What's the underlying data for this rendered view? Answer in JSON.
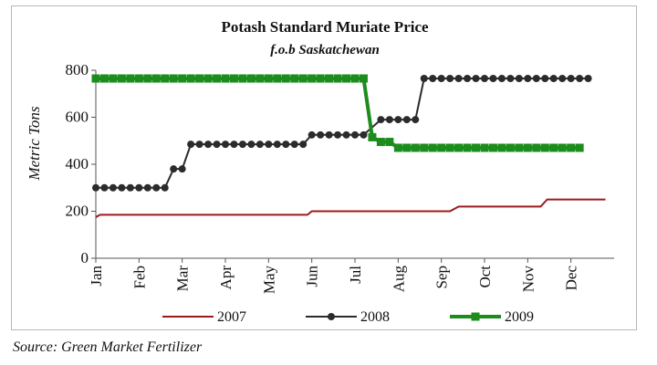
{
  "chart_data": {
    "type": "line",
    "title": "Potash Standard Muriate Price",
    "subtitle": "f.o.b Saskatchewan",
    "ylabel": "Metric Tons",
    "xlabel": "",
    "ylim": [
      0,
      800
    ],
    "yticks": [
      0,
      200,
      400,
      600,
      800
    ],
    "categories": [
      "Jan",
      "Feb",
      "Mar",
      "Apr",
      "May",
      "Jun",
      "Jul",
      "Aug",
      "Sep",
      "Oct",
      "Nov",
      "Dec"
    ],
    "grid": false,
    "legend_position": "bottom",
    "series": [
      {
        "name": "2007",
        "color": "#9b1b1b",
        "marker": "none",
        "points": [
          [
            0,
            175
          ],
          [
            0.1,
            185
          ],
          [
            1,
            185
          ],
          [
            2,
            185
          ],
          [
            3,
            185
          ],
          [
            4,
            185
          ],
          [
            4.9,
            185
          ],
          [
            5,
            200
          ],
          [
            6,
            200
          ],
          [
            7,
            200
          ],
          [
            8.2,
            200
          ],
          [
            8.4,
            220
          ],
          [
            9,
            220
          ],
          [
            10,
            220
          ],
          [
            10.3,
            220
          ],
          [
            10.45,
            250
          ],
          [
            11,
            250
          ],
          [
            11.8,
            250
          ]
        ]
      },
      {
        "name": "2008",
        "color": "#2b2b2b",
        "marker": "circle",
        "points": [
          [
            0,
            300
          ],
          [
            0.2,
            300
          ],
          [
            0.4,
            300
          ],
          [
            0.6,
            300
          ],
          [
            0.8,
            300
          ],
          [
            1.0,
            300
          ],
          [
            1.2,
            300
          ],
          [
            1.4,
            300
          ],
          [
            1.6,
            300
          ],
          [
            1.8,
            380
          ],
          [
            2.0,
            380
          ],
          [
            2.2,
            485
          ],
          [
            2.4,
            485
          ],
          [
            2.6,
            485
          ],
          [
            2.8,
            485
          ],
          [
            3.0,
            485
          ],
          [
            3.2,
            485
          ],
          [
            3.4,
            485
          ],
          [
            3.6,
            485
          ],
          [
            3.8,
            485
          ],
          [
            4.0,
            485
          ],
          [
            4.2,
            485
          ],
          [
            4.4,
            485
          ],
          [
            4.6,
            485
          ],
          [
            4.8,
            485
          ],
          [
            5.0,
            525
          ],
          [
            5.2,
            525
          ],
          [
            5.4,
            525
          ],
          [
            5.6,
            525
          ],
          [
            5.8,
            525
          ],
          [
            6.0,
            525
          ],
          [
            6.2,
            525
          ],
          [
            6.6,
            590
          ],
          [
            6.8,
            590
          ],
          [
            7.0,
            590
          ],
          [
            7.2,
            590
          ],
          [
            7.4,
            590
          ],
          [
            7.6,
            765
          ],
          [
            7.8,
            765
          ],
          [
            8.0,
            765
          ],
          [
            8.2,
            765
          ],
          [
            8.4,
            765
          ],
          [
            8.6,
            765
          ],
          [
            8.8,
            765
          ],
          [
            9.0,
            765
          ],
          [
            9.2,
            765
          ],
          [
            9.4,
            765
          ],
          [
            9.6,
            765
          ],
          [
            9.8,
            765
          ],
          [
            10.0,
            765
          ],
          [
            10.2,
            765
          ],
          [
            10.4,
            765
          ],
          [
            10.6,
            765
          ],
          [
            10.8,
            765
          ],
          [
            11.0,
            765
          ],
          [
            11.2,
            765
          ],
          [
            11.4,
            765
          ]
        ]
      },
      {
        "name": "2009",
        "color": "#1c8c1c",
        "marker": "square",
        "points": [
          [
            0,
            765
          ],
          [
            0.2,
            765
          ],
          [
            0.4,
            765
          ],
          [
            0.6,
            765
          ],
          [
            0.8,
            765
          ],
          [
            1.0,
            765
          ],
          [
            1.2,
            765
          ],
          [
            1.4,
            765
          ],
          [
            1.6,
            765
          ],
          [
            1.8,
            765
          ],
          [
            2.0,
            765
          ],
          [
            2.2,
            765
          ],
          [
            2.4,
            765
          ],
          [
            2.6,
            765
          ],
          [
            2.8,
            765
          ],
          [
            3.0,
            765
          ],
          [
            3.2,
            765
          ],
          [
            3.4,
            765
          ],
          [
            3.6,
            765
          ],
          [
            3.8,
            765
          ],
          [
            4.0,
            765
          ],
          [
            4.2,
            765
          ],
          [
            4.4,
            765
          ],
          [
            4.6,
            765
          ],
          [
            4.8,
            765
          ],
          [
            5.0,
            765
          ],
          [
            5.2,
            765
          ],
          [
            5.4,
            765
          ],
          [
            5.6,
            765
          ],
          [
            5.8,
            765
          ],
          [
            6.0,
            765
          ],
          [
            6.2,
            765
          ],
          [
            6.4,
            515
          ],
          [
            6.6,
            495
          ],
          [
            6.8,
            495
          ],
          [
            7.0,
            470
          ],
          [
            7.2,
            470
          ],
          [
            7.4,
            470
          ],
          [
            7.6,
            470
          ],
          [
            7.8,
            470
          ],
          [
            8.0,
            470
          ],
          [
            8.2,
            470
          ],
          [
            8.4,
            470
          ],
          [
            8.6,
            470
          ],
          [
            8.8,
            470
          ],
          [
            9.0,
            470
          ],
          [
            9.2,
            470
          ],
          [
            9.4,
            470
          ],
          [
            9.6,
            470
          ],
          [
            9.8,
            470
          ],
          [
            10.0,
            470
          ],
          [
            10.2,
            470
          ],
          [
            10.4,
            470
          ],
          [
            10.6,
            470
          ],
          [
            10.8,
            470
          ],
          [
            11.0,
            470
          ],
          [
            11.2,
            470
          ]
        ]
      }
    ]
  },
  "source": "Source: Green Market Fertilizer"
}
